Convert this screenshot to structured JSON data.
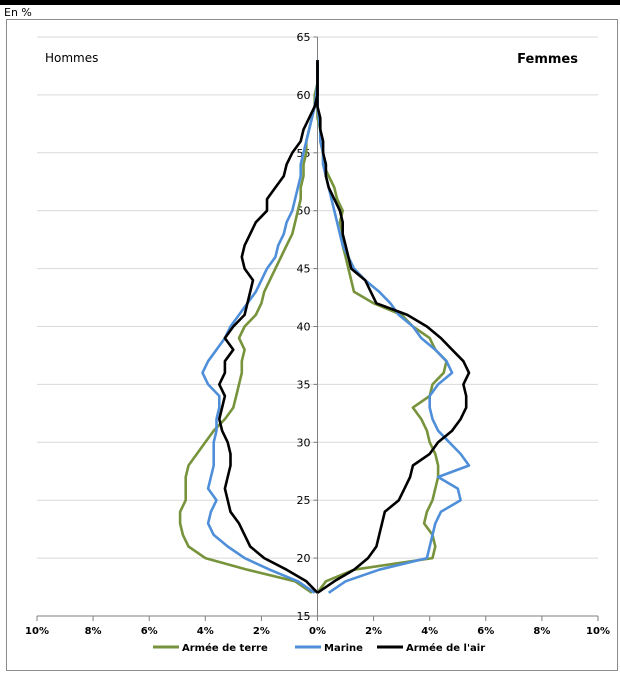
{
  "header": {
    "unit_label": "En %"
  },
  "chart_data": {
    "type": "line",
    "title": "",
    "left_label": "Hommes",
    "right_label": "Femmes",
    "xlim": [
      -10,
      10
    ],
    "ylim": [
      15,
      65
    ],
    "x_ticks": [
      -10,
      -8,
      -6,
      -4,
      -2,
      0,
      2,
      4,
      6,
      8,
      10
    ],
    "x_tick_labels": [
      "10%",
      "8%",
      "6%",
      "4%",
      "2%",
      "0%",
      "2%",
      "4%",
      "6%",
      "8%",
      "10%"
    ],
    "y_ticks": [
      15,
      20,
      25,
      30,
      35,
      40,
      45,
      50,
      55,
      60,
      65
    ],
    "y_tick_labels": [
      "15",
      "20",
      "25",
      "30",
      "35",
      "40",
      "45",
      "50",
      "55",
      "60",
      "65"
    ],
    "legend_position": "bottom",
    "series": [
      {
        "name": "Armée de terre",
        "color": "#77933c",
        "men": [
          [
            17,
            -0.2
          ],
          [
            18,
            -0.8
          ],
          [
            19,
            -2.5
          ],
          [
            20,
            -4.0
          ],
          [
            21,
            -4.6
          ],
          [
            22,
            -4.8
          ],
          [
            23,
            -4.9
          ],
          [
            24,
            -4.9
          ],
          [
            25,
            -4.7
          ],
          [
            26,
            -4.7
          ],
          [
            27,
            -4.7
          ],
          [
            28,
            -4.6
          ],
          [
            29,
            -4.3
          ],
          [
            30,
            -4.0
          ],
          [
            31,
            -3.7
          ],
          [
            32,
            -3.3
          ],
          [
            33,
            -3.0
          ],
          [
            34,
            -2.9
          ],
          [
            35,
            -2.8
          ],
          [
            36,
            -2.7
          ],
          [
            37,
            -2.7
          ],
          [
            38,
            -2.6
          ],
          [
            39,
            -2.8
          ],
          [
            40,
            -2.6
          ],
          [
            41,
            -2.2
          ],
          [
            42,
            -2.0
          ],
          [
            43,
            -1.9
          ],
          [
            44,
            -1.7
          ],
          [
            45,
            -1.5
          ],
          [
            46,
            -1.3
          ],
          [
            47,
            -1.1
          ],
          [
            48,
            -0.9
          ],
          [
            49,
            -0.8
          ],
          [
            50,
            -0.7
          ],
          [
            51,
            -0.6
          ],
          [
            52,
            -0.6
          ],
          [
            53,
            -0.5
          ],
          [
            54,
            -0.5
          ],
          [
            55,
            -0.4
          ],
          [
            56,
            -0.4
          ],
          [
            57,
            -0.3
          ],
          [
            58,
            -0.2
          ],
          [
            59,
            -0.1
          ],
          [
            60,
            -0.1
          ],
          [
            61,
            0
          ],
          [
            62,
            0
          ],
          [
            63,
            0
          ]
        ],
        "women": [
          [
            17,
            0
          ],
          [
            18,
            0.3
          ],
          [
            19,
            1.3
          ],
          [
            20,
            4.1
          ],
          [
            21,
            4.2
          ],
          [
            22,
            4.1
          ],
          [
            23,
            3.8
          ],
          [
            24,
            3.9
          ],
          [
            25,
            4.1
          ],
          [
            26,
            4.2
          ],
          [
            27,
            4.3
          ],
          [
            28,
            4.3
          ],
          [
            29,
            4.2
          ],
          [
            30,
            4.0
          ],
          [
            31,
            3.9
          ],
          [
            32,
            3.7
          ],
          [
            33,
            3.4
          ],
          [
            34,
            4.0
          ],
          [
            35,
            4.1
          ],
          [
            36,
            4.5
          ],
          [
            37,
            4.6
          ],
          [
            38,
            4.2
          ],
          [
            39,
            4.0
          ],
          [
            40,
            3.4
          ],
          [
            41,
            3.0
          ],
          [
            42,
            2.0
          ],
          [
            43,
            1.3
          ],
          [
            44,
            1.2
          ],
          [
            45,
            1.1
          ],
          [
            46,
            1.0
          ],
          [
            47,
            0.9
          ],
          [
            48,
            0.9
          ],
          [
            49,
            0.8
          ],
          [
            50,
            0.9
          ],
          [
            51,
            0.7
          ],
          [
            52,
            0.6
          ],
          [
            53,
            0.4
          ],
          [
            54,
            0.2
          ],
          [
            55,
            0.2
          ],
          [
            56,
            0.1
          ],
          [
            57,
            0.1
          ],
          [
            58,
            0
          ],
          [
            59,
            0
          ],
          [
            60,
            0
          ],
          [
            61,
            0
          ],
          [
            62,
            0
          ],
          [
            63,
            0
          ]
        ]
      },
      {
        "name": "Marine",
        "color": "#4f8fd9",
        "men": [
          [
            17,
            -0.1
          ],
          [
            18,
            -0.7
          ],
          [
            19,
            -1.7
          ],
          [
            20,
            -2.6
          ],
          [
            21,
            -3.2
          ],
          [
            22,
            -3.7
          ],
          [
            23,
            -3.9
          ],
          [
            24,
            -3.8
          ],
          [
            25,
            -3.6
          ],
          [
            26,
            -3.9
          ],
          [
            27,
            -3.8
          ],
          [
            28,
            -3.7
          ],
          [
            29,
            -3.7
          ],
          [
            30,
            -3.7
          ],
          [
            31,
            -3.6
          ],
          [
            32,
            -3.6
          ],
          [
            33,
            -3.5
          ],
          [
            34,
            -3.5
          ],
          [
            35,
            -3.9
          ],
          [
            36,
            -4.1
          ],
          [
            37,
            -3.9
          ],
          [
            38,
            -3.6
          ],
          [
            39,
            -3.3
          ],
          [
            40,
            -3.1
          ],
          [
            41,
            -2.8
          ],
          [
            42,
            -2.5
          ],
          [
            43,
            -2.2
          ],
          [
            44,
            -2.0
          ],
          [
            45,
            -1.8
          ],
          [
            46,
            -1.5
          ],
          [
            47,
            -1.4
          ],
          [
            48,
            -1.2
          ],
          [
            49,
            -1.1
          ],
          [
            50,
            -0.9
          ],
          [
            51,
            -0.8
          ],
          [
            52,
            -0.7
          ],
          [
            53,
            -0.6
          ],
          [
            54,
            -0.6
          ],
          [
            55,
            -0.5
          ],
          [
            56,
            -0.4
          ],
          [
            57,
            -0.3
          ],
          [
            58,
            -0.2
          ],
          [
            59,
            -0.1
          ],
          [
            60,
            -0.05
          ],
          [
            61,
            0
          ],
          [
            62,
            0
          ],
          [
            63,
            0
          ]
        ],
        "women": [
          [
            17,
            0.4
          ],
          [
            18,
            1.0
          ],
          [
            19,
            2.2
          ],
          [
            20,
            3.9
          ],
          [
            21,
            4.0
          ],
          [
            22,
            4.1
          ],
          [
            23,
            4.2
          ],
          [
            24,
            4.4
          ],
          [
            25,
            5.1
          ],
          [
            26,
            5.0
          ],
          [
            27,
            4.3
          ],
          [
            28,
            5.4
          ],
          [
            29,
            5.1
          ],
          [
            30,
            4.7
          ],
          [
            31,
            4.3
          ],
          [
            32,
            4.1
          ],
          [
            33,
            4.0
          ],
          [
            34,
            4.0
          ],
          [
            35,
            4.3
          ],
          [
            36,
            4.8
          ],
          [
            37,
            4.6
          ],
          [
            38,
            4.2
          ],
          [
            39,
            3.7
          ],
          [
            40,
            3.4
          ],
          [
            41,
            2.9
          ],
          [
            42,
            2.6
          ],
          [
            43,
            2.2
          ],
          [
            44,
            1.7
          ],
          [
            45,
            1.3
          ],
          [
            46,
            1.1
          ],
          [
            47,
            0.9
          ],
          [
            48,
            0.8
          ],
          [
            49,
            0.7
          ],
          [
            50,
            0.6
          ],
          [
            51,
            0.5
          ],
          [
            52,
            0.4
          ],
          [
            53,
            0.3
          ],
          [
            54,
            0.2
          ],
          [
            55,
            0.2
          ],
          [
            56,
            0.1
          ],
          [
            57,
            0.1
          ],
          [
            58,
            0.05
          ],
          [
            59,
            0
          ],
          [
            60,
            0
          ],
          [
            61,
            0
          ],
          [
            62,
            0
          ],
          [
            63,
            0
          ]
        ]
      },
      {
        "name": "Armée de l'air",
        "color": "#000000",
        "men": [
          [
            17,
            0
          ],
          [
            18,
            -0.4
          ],
          [
            19,
            -1.1
          ],
          [
            20,
            -1.9
          ],
          [
            21,
            -2.4
          ],
          [
            22,
            -2.6
          ],
          [
            23,
            -2.8
          ],
          [
            24,
            -3.1
          ],
          [
            25,
            -3.2
          ],
          [
            26,
            -3.3
          ],
          [
            27,
            -3.2
          ],
          [
            28,
            -3.1
          ],
          [
            29,
            -3.1
          ],
          [
            30,
            -3.2
          ],
          [
            31,
            -3.4
          ],
          [
            32,
            -3.5
          ],
          [
            33,
            -3.4
          ],
          [
            34,
            -3.3
          ],
          [
            35,
            -3.5
          ],
          [
            36,
            -3.3
          ],
          [
            37,
            -3.3
          ],
          [
            38,
            -3.0
          ],
          [
            39,
            -3.3
          ],
          [
            40,
            -3.0
          ],
          [
            41,
            -2.6
          ],
          [
            42,
            -2.5
          ],
          [
            43,
            -2.4
          ],
          [
            44,
            -2.3
          ],
          [
            45,
            -2.6
          ],
          [
            46,
            -2.7
          ],
          [
            47,
            -2.6
          ],
          [
            48,
            -2.4
          ],
          [
            49,
            -2.2
          ],
          [
            50,
            -1.8
          ],
          [
            51,
            -1.8
          ],
          [
            52,
            -1.5
          ],
          [
            53,
            -1.2
          ],
          [
            54,
            -1.1
          ],
          [
            55,
            -0.9
          ],
          [
            56,
            -0.6
          ],
          [
            57,
            -0.5
          ],
          [
            58,
            -0.3
          ],
          [
            59,
            -0.1
          ],
          [
            60,
            0
          ],
          [
            61,
            0
          ],
          [
            62,
            0
          ],
          [
            63,
            0
          ]
        ],
        "women": [
          [
            17,
            0
          ],
          [
            18,
            0.6
          ],
          [
            19,
            1.3
          ],
          [
            20,
            1.8
          ],
          [
            21,
            2.1
          ],
          [
            22,
            2.2
          ],
          [
            23,
            2.3
          ],
          [
            24,
            2.4
          ],
          [
            25,
            2.9
          ],
          [
            26,
            3.1
          ],
          [
            27,
            3.3
          ],
          [
            28,
            3.4
          ],
          [
            29,
            4.0
          ],
          [
            30,
            4.3
          ],
          [
            31,
            4.8
          ],
          [
            32,
            5.1
          ],
          [
            33,
            5.3
          ],
          [
            34,
            5.3
          ],
          [
            35,
            5.2
          ],
          [
            36,
            5.4
          ],
          [
            37,
            5.2
          ],
          [
            38,
            4.8
          ],
          [
            39,
            4.4
          ],
          [
            40,
            3.9
          ],
          [
            41,
            3.2
          ],
          [
            42,
            2.1
          ],
          [
            43,
            1.9
          ],
          [
            44,
            1.7
          ],
          [
            45,
            1.2
          ],
          [
            46,
            1.1
          ],
          [
            47,
            1.0
          ],
          [
            48,
            0.9
          ],
          [
            49,
            0.9
          ],
          [
            50,
            0.8
          ],
          [
            51,
            0.6
          ],
          [
            52,
            0.4
          ],
          [
            53,
            0.3
          ],
          [
            54,
            0.3
          ],
          [
            55,
            0.2
          ],
          [
            56,
            0.2
          ],
          [
            57,
            0.1
          ],
          [
            58,
            0.1
          ],
          [
            59,
            0
          ],
          [
            60,
            0
          ],
          [
            61,
            0
          ],
          [
            62,
            0
          ],
          [
            63,
            0
          ]
        ]
      }
    ]
  }
}
